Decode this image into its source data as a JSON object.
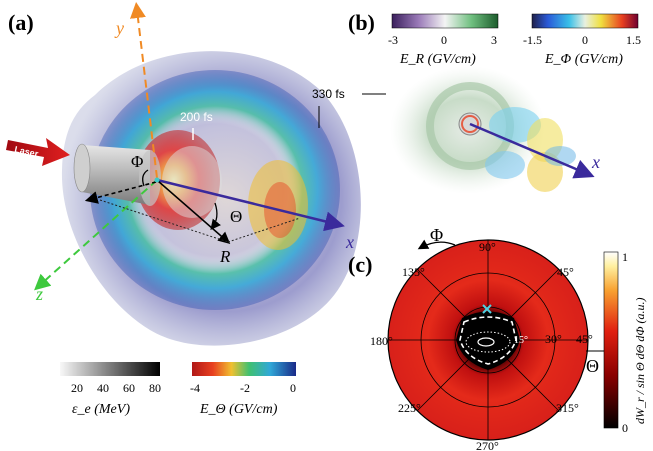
{
  "panel_a": {
    "label": "(a)",
    "axis_y": "y",
    "axis_z": "z",
    "axis_x": "x",
    "phi_symbol": "Φ",
    "theta_symbol": "Θ",
    "r_symbol": "R",
    "time_label": "200 fs",
    "laser_label": "Laser"
  },
  "panel_b": {
    "label": "(b)",
    "time_label": "330 fs",
    "axis_x": "x",
    "colorbar_er": {
      "min": "-3",
      "mid": "0",
      "max": "3",
      "label": "E_R (GV/cm)"
    },
    "colorbar_ephi": {
      "min": "-1.5",
      "mid": "0",
      "max": "1.5",
      "label": "E_Φ (GV/cm)"
    }
  },
  "panel_c": {
    "label": "(c)",
    "phi_symbol": "Φ",
    "theta_symbol": "Θ",
    "angles": [
      "90°",
      "45°",
      "135°",
      "180°",
      "225°",
      "270°",
      "315°"
    ],
    "radial_ticks": [
      "15°",
      "30°",
      "45°"
    ],
    "colorbar": {
      "min": "0",
      "max": "1",
      "label": "dW_r / sin Θ dΘ dΦ (a.u.)"
    }
  },
  "bottom_colorbars": {
    "energy": {
      "ticks": [
        "20",
        "40",
        "60",
        "80"
      ],
      "label": "ε_e (MeV)"
    },
    "e_theta": {
      "ticks": [
        "-4",
        "-2",
        "0"
      ],
      "label": "E_Θ (GV/cm)"
    }
  },
  "colors": {
    "y_axis": "#f08a24",
    "z_axis": "#3ec93e",
    "x_axis": "#3a2a9c",
    "laser": "#c0101a"
  }
}
